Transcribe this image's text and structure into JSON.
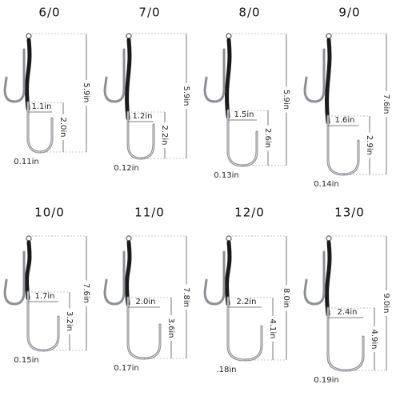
{
  "hooks": [
    {
      "size": "6/0",
      "length": "5.9in",
      "width": "1.1in",
      "depth": "2.0in",
      "wire": "0.11in"
    },
    {
      "size": "7/0",
      "length": "5.9in",
      "width": "1.2in",
      "depth": "2.2in",
      "wire": "0.12in"
    },
    {
      "size": "8/0",
      "length": "5.9in",
      "width": "1.5in",
      "depth": "2.6in",
      "wire": "0.13in"
    },
    {
      "size": "9/0",
      "length": "7.6in",
      "width": "1.6in",
      "depth": "2.9in",
      "wire": "0.14in"
    },
    {
      "size": "10/0",
      "length": "7.6in",
      "width": "1.7in",
      "depth": "3.2in",
      "wire": "0.15in"
    },
    {
      "size": "11/0",
      "length": "7.8in",
      "width": "2.0in",
      "depth": "3.6in",
      "wire": "0.17in"
    },
    {
      "size": "12/0",
      "length": "8.0in",
      "width": "2.2in",
      "depth": "4.1in",
      "wire": ".18in"
    },
    {
      "size": "13/0",
      "length": "9.0in",
      "width": "2.4in",
      "depth": "4.9in",
      "wire": "0.19in"
    }
  ]
}
